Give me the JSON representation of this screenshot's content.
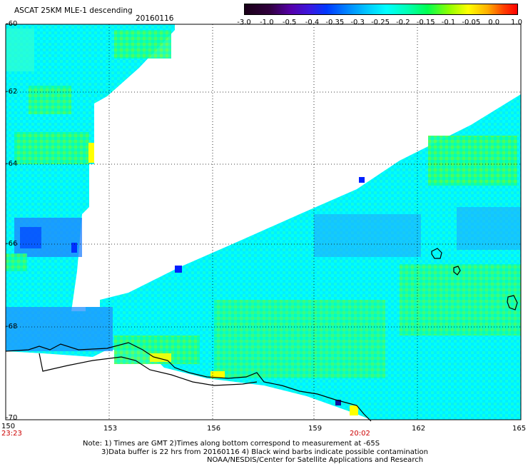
{
  "title": "ASCAT 25KM MLE-1 descending",
  "date": "20160116",
  "legend": {
    "ticks": [
      "-3.0",
      "-1.0",
      "-0.5",
      "-0.4",
      "-0.35",
      "-0.3",
      "-0.25",
      "-0.2",
      "-0.15",
      "-0.1",
      "-0.05",
      "0.0",
      "1.0"
    ]
  },
  "axes": {
    "lon_labels": [
      "150",
      "153",
      "156",
      "159",
      "162",
      "165"
    ],
    "lat_labels": [
      "-60",
      "-62",
      "-64",
      "-66",
      "-68",
      "-70"
    ]
  },
  "times": {
    "left": "23:23",
    "middle": "20:02"
  },
  "notes": {
    "line1": "Note: 1) Times are GMT 2)Times along bottom correspond to measurement at -65S",
    "line2": "3)Data buffer is 22 hrs from 20160116 4) Black wind barbs indicate possible contamination",
    "line3": "NOAA/NESDIS/Center for Satellite Applications and Research"
  },
  "colors": {
    "cyan": "#00ffff",
    "green": "#00ff50",
    "blue": "#0060ff",
    "yellow": "#ffff00",
    "background": "#ffffff"
  }
}
